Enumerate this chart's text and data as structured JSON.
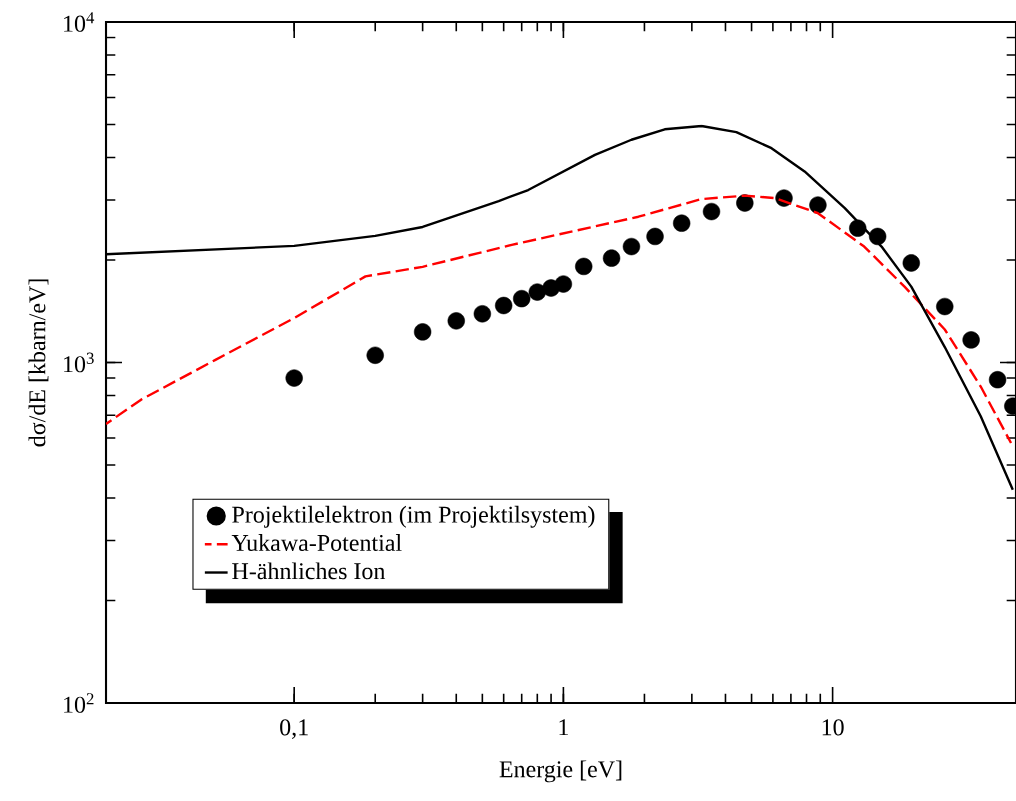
{
  "chart_data": {
    "type": "line",
    "xlabel": "Energie [eV]",
    "ylabel": "dσ/dE [kbarn/eV]",
    "log": "xy",
    "xlim": [
      0.02,
      48
    ],
    "ylim": [
      100,
      10000
    ],
    "xticks": [
      {
        "value": 0.1,
        "label": "0,1"
      },
      1,
      10
    ],
    "yticks": [
      {
        "value": 100,
        "label": "10$^{2}$"
      },
      {
        "value": 1000,
        "label": "10$^{3}$"
      },
      {
        "value": 10000,
        "label": "10$^{4}$"
      }
    ],
    "legend": "bottom left",
    "marker": "circle",
    "series": [
      {
        "name": "Projektilelektron (im Projektilsystem)",
        "type": "scatter",
        "color": "#000000",
        "x": [
          0.1,
          0.2,
          0.3,
          0.4,
          0.5,
          0.6,
          0.7,
          0.8,
          0.9,
          1.0,
          1.19,
          1.51,
          1.79,
          2.19,
          2.75,
          3.55,
          4.72,
          6.6,
          8.82,
          12.4,
          14.7,
          19.6,
          26.1,
          32.7,
          41,
          46.7
        ],
        "values": [
          900,
          1050,
          1230,
          1325,
          1390,
          1470,
          1540,
          1610,
          1655,
          1700,
          1915,
          2025,
          2190,
          2345,
          2565,
          2775,
          2940,
          3040,
          2900,
          2480,
          2345,
          1960,
          1460,
          1165,
          890,
          745
        ]
      },
      {
        "name": "Yukawa-Potential",
        "marker": "none",
        "line_style": "dashed",
        "color": "#ff0000",
        "x": [
          0.02,
          0.027,
          0.051,
          0.1,
          0.184,
          0.3,
          0.643,
          1.9,
          3.26,
          4.72,
          6.1,
          8.82,
          13.1,
          18.5,
          26.1,
          35.5,
          46
        ],
        "values": [
          660,
          778,
          1018,
          1350,
          1790,
          1910,
          2215,
          2680,
          3020,
          3090,
          3040,
          2745,
          2190,
          1670,
          1250,
          850,
          580
        ]
      },
      {
        "name": "H-ähnliches Ion",
        "marker": "none",
        "line_style": "solid",
        "color": "#000000",
        "x": [
          0.02,
          0.1,
          0.2,
          0.3,
          0.575,
          0.74,
          1.31,
          1.79,
          2.38,
          3.26,
          4.39,
          5.93,
          7.87,
          11.1,
          15.2,
          19.6,
          26.1,
          35.5,
          46.7
        ],
        "values": [
          2080,
          2200,
          2355,
          2500,
          2980,
          3210,
          4070,
          4510,
          4840,
          4950,
          4750,
          4260,
          3640,
          2840,
          2190,
          1670,
          1110,
          695,
          423
        ]
      }
    ]
  }
}
